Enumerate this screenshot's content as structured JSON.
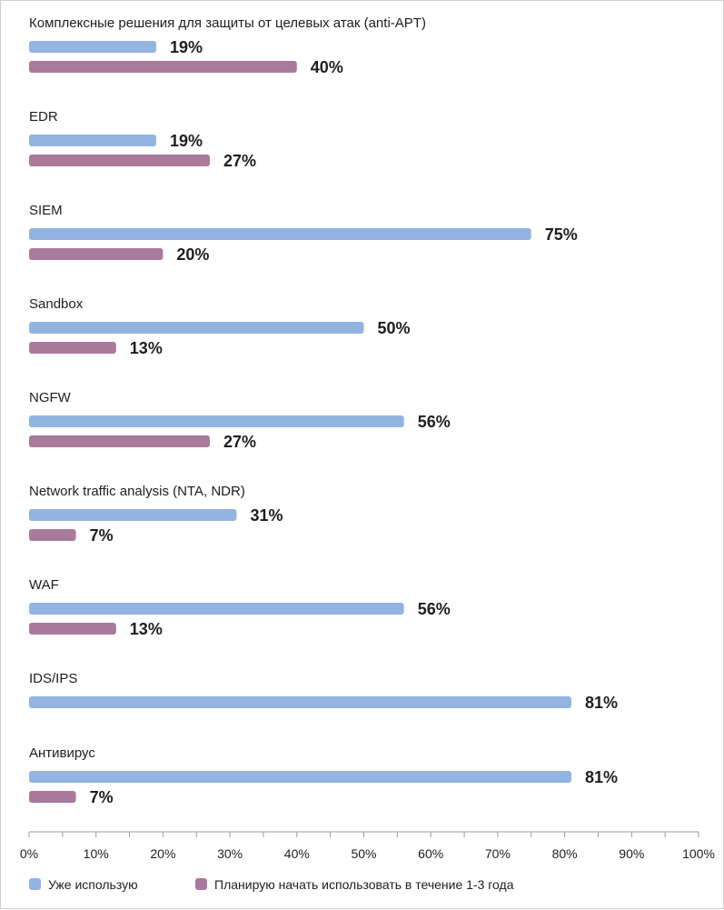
{
  "chart_data": {
    "type": "bar",
    "orientation": "horizontal",
    "categories": [
      "Комплексные решения для защиты от целевых атак (anti-APT)",
      "EDR",
      "SIEM",
      "Sandbox",
      "NGFW",
      "Network traffic analysis (NTA, NDR)",
      "WAF",
      "IDS/IPS",
      "Антивирус"
    ],
    "series": [
      {
        "name": "Уже использую",
        "color": "#93b4e0",
        "values": [
          19,
          19,
          75,
          50,
          56,
          31,
          56,
          81,
          81
        ],
        "labels": [
          "19%",
          "19%",
          "75%",
          "50%",
          "56%",
          "31%",
          "56%",
          "81%",
          "81%"
        ]
      },
      {
        "name": "Планирую начать использовать в течение 1-3 года",
        "color": "#a97a9b",
        "values": [
          40,
          27,
          20,
          13,
          27,
          7,
          13,
          null,
          7
        ],
        "labels": [
          "40%",
          "27%",
          "20%",
          "13%",
          "27%",
          "7%",
          "13%",
          null,
          "7%"
        ]
      }
    ],
    "xlim": [
      0,
      100
    ],
    "xticks": [
      0,
      10,
      20,
      30,
      40,
      50,
      60,
      70,
      80,
      90,
      100
    ],
    "xtick_labels": [
      "0%",
      "10%",
      "20%",
      "30%",
      "40%",
      "50%",
      "60%",
      "70%",
      "80%",
      "90%",
      "100%"
    ],
    "legend_position": "bottom-left",
    "grid": false
  }
}
